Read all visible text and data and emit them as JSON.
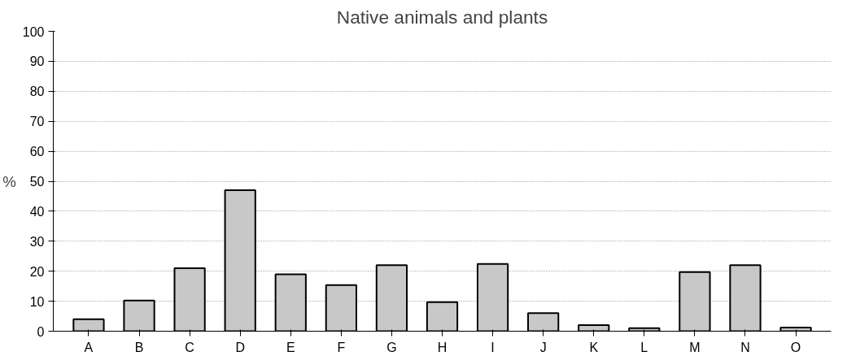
{
  "chart_data": {
    "type": "bar",
    "title": "Native animals and plants",
    "ylabel": "%",
    "categories": [
      "A",
      "B",
      "C",
      "D",
      "E",
      "F",
      "G",
      "H",
      "I",
      "J",
      "K",
      "L",
      "M",
      "N",
      "O"
    ],
    "values": [
      4,
      10.2,
      21,
      47,
      19,
      15.4,
      22,
      9.7,
      22.4,
      6,
      2,
      1,
      19.7,
      22,
      1.2
    ],
    "color": "#c8c8c8",
    "ylim": [
      0,
      100
    ],
    "yticks": [
      0,
      10,
      20,
      30,
      40,
      50,
      60,
      70,
      80,
      90,
      100
    ],
    "grid": "y"
  }
}
